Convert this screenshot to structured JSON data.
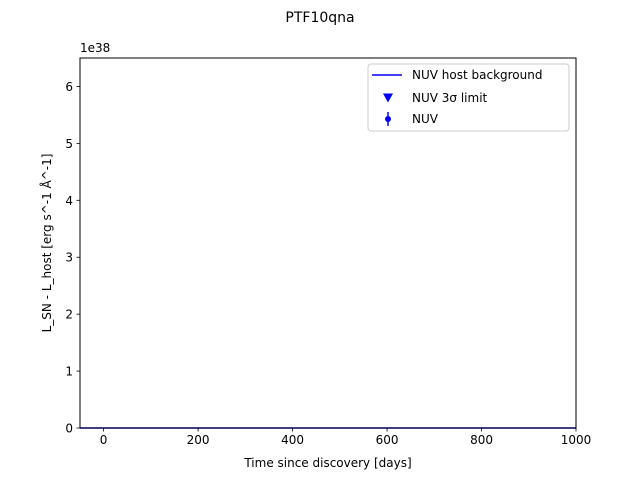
{
  "chart_data": {
    "type": "line",
    "title": "PTF10qna",
    "xlabel": "Time since discovery [days]",
    "ylabel": "L_SN - L_host [erg s^-1 Å^-1]",
    "offset_text": "1e38",
    "xlim": [
      -50,
      1000
    ],
    "ylim": [
      0,
      6.5
    ],
    "x_ticks": [
      0,
      200,
      400,
      600,
      800,
      1000
    ],
    "x_tick_labels": [
      "0",
      "200",
      "400",
      "600",
      "800",
      "1000"
    ],
    "y_ticks": [
      0,
      1,
      2,
      3,
      4,
      5,
      6
    ],
    "y_tick_labels": [
      "0",
      "1",
      "2",
      "3",
      "4",
      "5",
      "6"
    ],
    "grid": false,
    "legend_position": "upper right",
    "series": [
      {
        "name": "NUV host background",
        "kind": "line",
        "color": "#0000ff",
        "x": [
          -50,
          1000
        ],
        "y": [
          0,
          0
        ]
      },
      {
        "name": "NUV 3σ limit",
        "kind": "marker-triangle-down",
        "color": "#0000ff",
        "x": [],
        "y": []
      },
      {
        "name": "NUV",
        "kind": "errorbar-point",
        "color": "#0000ff",
        "x": [],
        "y": []
      }
    ]
  }
}
